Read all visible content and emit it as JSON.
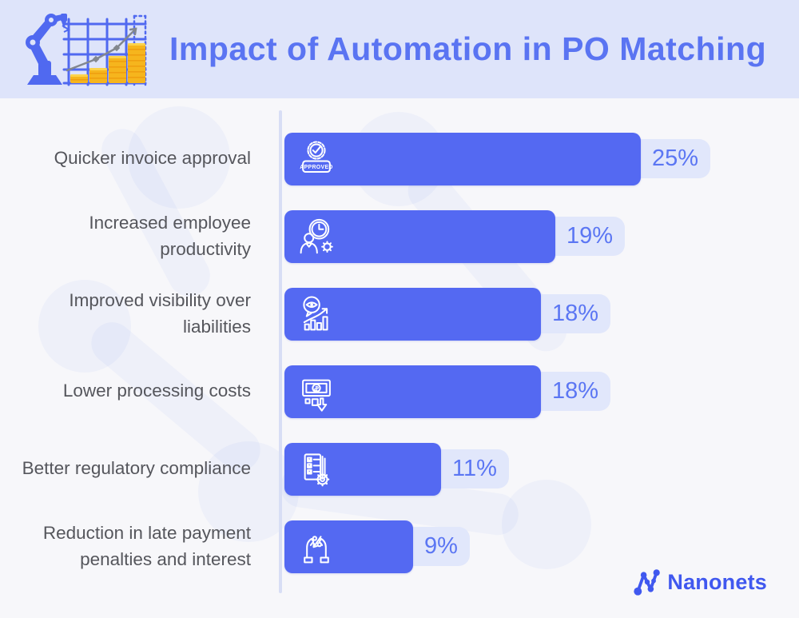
{
  "header": {
    "title": "Impact of Automation in PO Matching",
    "icon": "robot-arm-growth-chart-icon"
  },
  "chart_data": {
    "type": "bar",
    "orientation": "horizontal",
    "title": "Impact of Automation in PO Matching",
    "categories": [
      "Quicker invoice approval",
      "Increased employee productivity",
      "Improved visibility over liabilities",
      "Lower processing costs",
      "Better regulatory compliance",
      "Reduction in late payment penalties and interest"
    ],
    "values": [
      25,
      19,
      18,
      18,
      11,
      9
    ],
    "value_labels": [
      "25%",
      "19%",
      "18%",
      "18%",
      "11%",
      "9%"
    ],
    "unit": "%",
    "xlim": [
      0,
      28
    ],
    "grid": false,
    "legend": false,
    "bar_color": "#5469f2"
  },
  "rows": [
    {
      "label": "Quicker invoice approval",
      "value": 25,
      "value_label": "25%",
      "icon": "approved-stamp-icon",
      "icon_text": "APPROVED"
    },
    {
      "label": "Increased employee productivity",
      "value": 19,
      "value_label": "19%",
      "icon": "employee-productivity-icon"
    },
    {
      "label": "Improved visibility over liabilities",
      "value": 18,
      "value_label": "18%",
      "icon": "visibility-analytics-icon"
    },
    {
      "label": "Lower processing costs",
      "value": 18,
      "value_label": "18%",
      "icon": "lower-cost-icon"
    },
    {
      "label": "Better regulatory compliance",
      "value": 11,
      "value_label": "11%",
      "icon": "compliance-checklist-icon"
    },
    {
      "label": "Reduction in late payment penalties and interest",
      "value": 9,
      "value_label": "9%",
      "icon": "hands-percent-icon"
    }
  ],
  "footer": {
    "brand": "Nanonets"
  },
  "colors": {
    "header_bg": "#dee4fa",
    "body_bg": "#f7f7fa",
    "bar": "#5469f2",
    "title_text": "#5a74f2",
    "label_text": "#55565c",
    "badge_bg": "#e1e7fb",
    "badge_text": "#5b76f3",
    "axis_line": "#d8def5",
    "brand_blue": "#4058ef",
    "coin_gold": "#f6b51d"
  }
}
